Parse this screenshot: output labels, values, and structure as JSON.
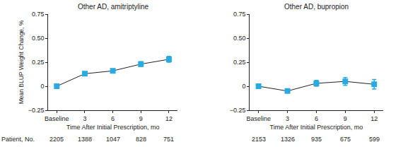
{
  "chart_data": [
    {
      "type": "line",
      "title": "Other AD, amitriptyline",
      "x_label": "Time After Initial Prescription, mo",
      "y_label": "Mean BLUP Weight Change, %",
      "categories": [
        "Baseline",
        "3",
        "6",
        "9",
        "12"
      ],
      "values": [
        0,
        0.13,
        0.16,
        0.23,
        0.28
      ],
      "errors": [
        0.01,
        0.02,
        0.02,
        0.025,
        0.03
      ],
      "patients": [
        2205,
        1388,
        1047,
        828,
        751
      ],
      "color": "#29abe2",
      "marker": "square",
      "ylim": [
        -0.25,
        0.75
      ],
      "yticks": [
        {
          "value": -0.25,
          "label": "−0.25"
        },
        0,
        0.25,
        {
          "value": 0.5,
          "label": "0.50"
        },
        0.75
      ],
      "grid": false
    },
    {
      "type": "line",
      "title": "Other AD, bupropion",
      "x_label": "Time After Initial Prescription, mo",
      "categories": [
        "Baseline",
        "3",
        "6",
        "9",
        "12"
      ],
      "values": [
        0,
        -0.05,
        0.03,
        0.05,
        0.02
      ],
      "errors": [
        0.01,
        0.01,
        0.03,
        0.04,
        0.05
      ],
      "patients": [
        2153,
        1326,
        935,
        675,
        599
      ],
      "color": "#29abe2",
      "marker": "square",
      "ylim": [
        -0.25,
        0.75
      ],
      "yticks": [
        {
          "value": -0.25,
          "label": "−0.25"
        },
        0,
        0.25,
        {
          "value": 0.5,
          "label": "0.50"
        },
        0.75
      ],
      "grid": false
    }
  ],
  "row_label": "Patient, No."
}
